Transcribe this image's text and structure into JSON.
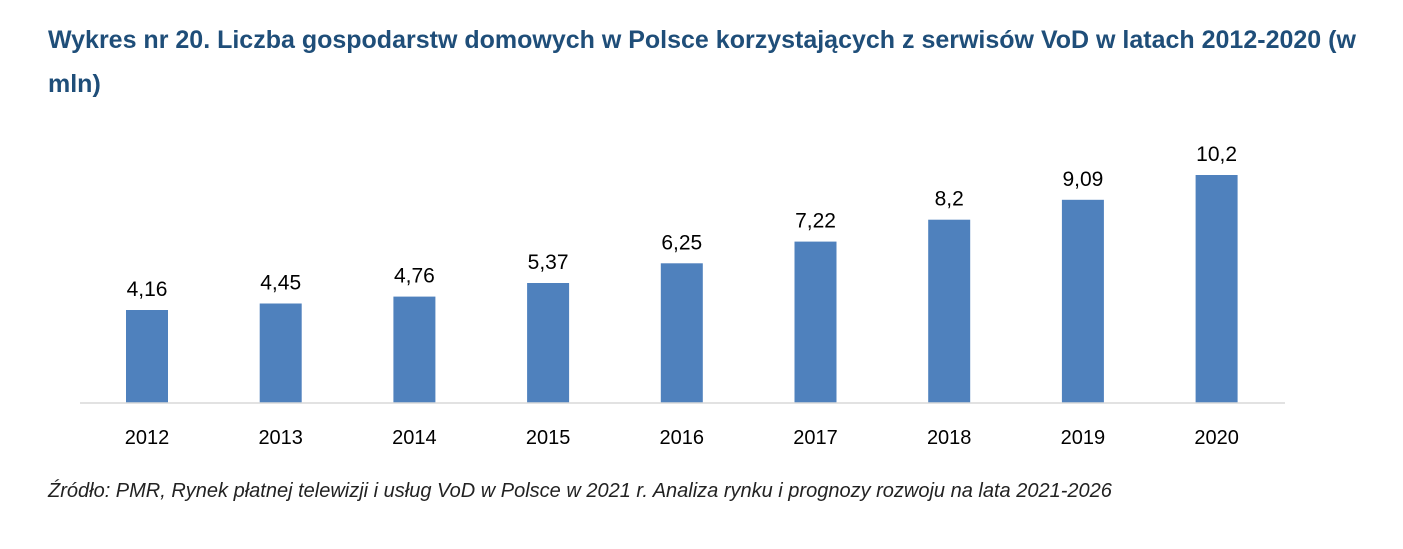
{
  "chart_data": {
    "type": "bar",
    "title": "Wykres nr 20. Liczba gospodarstw domowych w Polsce korzystających z serwisów VoD w latach 2012-2020 (w mln)",
    "categories": [
      "2012",
      "2013",
      "2014",
      "2015",
      "2016",
      "2017",
      "2018",
      "2019",
      "2020"
    ],
    "values": [
      4.16,
      4.45,
      4.76,
      5.37,
      6.25,
      7.22,
      8.2,
      9.09,
      10.2
    ],
    "data_labels": [
      "4,16",
      "4,45",
      "4,76",
      "5,37",
      "6,25",
      "7,22",
      "8,2",
      "9,09",
      "10,2"
    ],
    "xlabel": "",
    "ylabel": "",
    "ylim": [
      0,
      10.2
    ],
    "grid": false,
    "legend": "none",
    "bar_color": "#4f81bd",
    "axis_color": "#d9d9d9",
    "title_color": "#1f4e79"
  },
  "source": "Źródło: PMR, Rynek płatnej telewizji i usług VoD w Polsce w 2021 r. Analiza rynku i prognozy rozwoju na lata 2021-2026"
}
